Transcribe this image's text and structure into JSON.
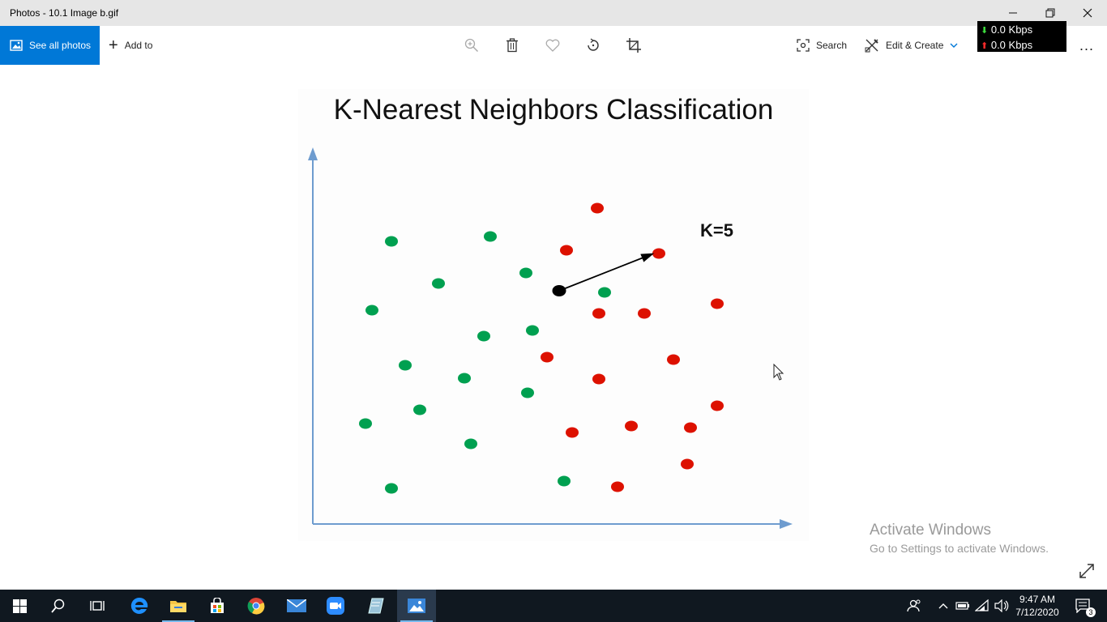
{
  "window": {
    "title": "Photos - 10.1 Image b.gif",
    "minimize_icon": "minimize-icon",
    "restore_icon": "restore-icon",
    "close_icon": "close-icon"
  },
  "toolbar": {
    "see_all_photos": "See all photos",
    "add_to": "Add to",
    "search": "Search",
    "edit_create": "Edit & Create",
    "more": "..."
  },
  "network": {
    "download": "0.0 Kbps",
    "upload": "0.0 Kbps"
  },
  "slide": {
    "title": "K-Nearest Neighbors Classification",
    "k_label": "K=5"
  },
  "chart_data": {
    "type": "scatter",
    "colors": {
      "green": "#00a050",
      "red": "#dd1100",
      "query": "#000000",
      "axis": "#6e9ccf"
    },
    "series": [
      {
        "color": "green",
        "points": [
          [
            483,
            298
          ],
          [
            605,
            292
          ],
          [
            541,
            350
          ],
          [
            649,
            337
          ],
          [
            459,
            383
          ],
          [
            746,
            361
          ],
          [
            597,
            415
          ],
          [
            657,
            408
          ],
          [
            500,
            451
          ],
          [
            573,
            467
          ],
          [
            651,
            485
          ],
          [
            518,
            506
          ],
          [
            451,
            523
          ],
          [
            581,
            548
          ],
          [
            483,
            603
          ],
          [
            696,
            594
          ]
        ]
      },
      {
        "color": "red",
        "points": [
          [
            737,
            257
          ],
          [
            699,
            309
          ],
          [
            813,
            313
          ],
          [
            739,
            387
          ],
          [
            795,
            387
          ],
          [
            885,
            375
          ],
          [
            675,
            441
          ],
          [
            831,
            444
          ],
          [
            739,
            468
          ],
          [
            885,
            501
          ],
          [
            706,
            534
          ],
          [
            779,
            526
          ],
          [
            852,
            528
          ],
          [
            848,
            573
          ],
          [
            762,
            601
          ]
        ]
      }
    ],
    "query_point": [
      690,
      359
    ],
    "arrow_to": [
      804,
      314
    ]
  },
  "watermark": {
    "line1": "Activate Windows",
    "line2": "Go to Settings to activate Windows."
  },
  "taskbar": {
    "time": "9:47 AM",
    "date": "7/12/2020",
    "notification_count": "3"
  }
}
